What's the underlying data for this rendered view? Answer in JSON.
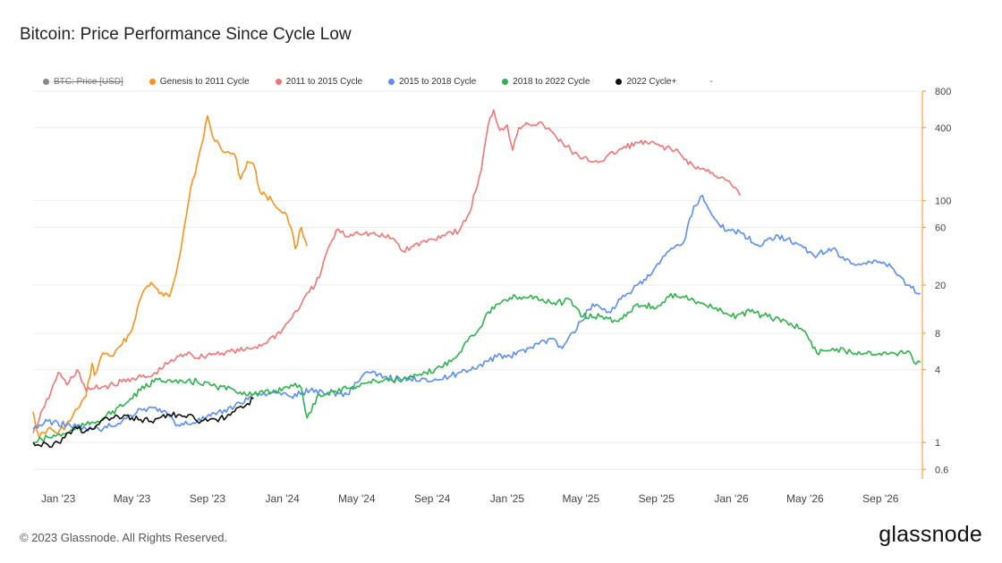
{
  "title": "Bitcoin: Price Performance Since Cycle Low",
  "footer": "© 2023 Glassnode. All Rights Reserved.",
  "brand": "glassnode",
  "legend": [
    {
      "label": "BTC: Price [USD]",
      "color": "#888888",
      "hidden": true
    },
    {
      "label": "Genesis to 2011 Cycle",
      "color": "#f7931a",
      "hidden": false
    },
    {
      "label": "2011 to 2015 Cycle",
      "color": "#f07575",
      "hidden": false
    },
    {
      "label": "2015 to 2018 Cycle",
      "color": "#5a8ef0",
      "hidden": false
    },
    {
      "label": "2018 to 2022 Cycle",
      "color": "#2eb24a",
      "hidden": false
    },
    {
      "label": "2022 Cycle+",
      "color": "#111111",
      "hidden": false
    }
  ],
  "legend_extra": "-",
  "chart_data": {
    "type": "line",
    "title": "Bitcoin: Price Performance Since Cycle Low",
    "x_ticks": [
      "Jan '23",
      "May '23",
      "Sep '23",
      "Jan '24",
      "May '24",
      "Sep '24",
      "Jan '25",
      "May '25",
      "Sep '25",
      "Jan '26",
      "May '26",
      "Sep '26"
    ],
    "y_ticks": [
      "800",
      "400",
      "100",
      "60",
      "20",
      "8",
      "4",
      "1",
      "0.6"
    ],
    "y_scale": "log",
    "y_axis_side": "right",
    "x_range": [
      "2022-11-21",
      "2026-11-08"
    ],
    "ylim": [
      0.5,
      800
    ],
    "grid": true,
    "legend_position": "top",
    "series": [
      {
        "name": "Genesis to 2011 Cycle",
        "color": "#f7931a",
        "points": [
          [
            "2022-11-21",
            1.8
          ],
          [
            "2022-12-01",
            1.1
          ],
          [
            "2022-12-15",
            1.3
          ],
          [
            "2023-01-01",
            1.2
          ],
          [
            "2023-01-20",
            1.5
          ],
          [
            "2023-02-01",
            1.9
          ],
          [
            "2023-02-15",
            2.4
          ],
          [
            "2023-02-25",
            4.5
          ],
          [
            "2023-03-01",
            3.6
          ],
          [
            "2023-03-15",
            5.5
          ],
          [
            "2023-04-01",
            5.2
          ],
          [
            "2023-04-15",
            6.5
          ],
          [
            "2023-05-01",
            8.5
          ],
          [
            "2023-05-10",
            13
          ],
          [
            "2023-05-20",
            18
          ],
          [
            "2023-06-01",
            21
          ],
          [
            "2023-06-15",
            17
          ],
          [
            "2023-07-01",
            16
          ],
          [
            "2023-07-15",
            30
          ],
          [
            "2023-07-25",
            60
          ],
          [
            "2023-08-05",
            130
          ],
          [
            "2023-08-15",
            200
          ],
          [
            "2023-08-25",
            320
          ],
          [
            "2023-09-01",
            500
          ],
          [
            "2023-09-10",
            330
          ],
          [
            "2023-09-20",
            290
          ],
          [
            "2023-10-01",
            250
          ],
          [
            "2023-10-15",
            240
          ],
          [
            "2023-10-25",
            150
          ],
          [
            "2023-11-05",
            210
          ],
          [
            "2023-11-15",
            200
          ],
          [
            "2023-11-25",
            120
          ],
          [
            "2023-12-05",
            110
          ],
          [
            "2023-12-15",
            100
          ],
          [
            "2023-12-25",
            85
          ],
          [
            "2024-01-05",
            80
          ],
          [
            "2024-01-15",
            60
          ],
          [
            "2024-01-22",
            40
          ],
          [
            "2024-02-01",
            60
          ],
          [
            "2024-02-10",
            42
          ]
        ]
      },
      {
        "name": "2011 to 2015 Cycle",
        "color": "#f07575",
        "points": [
          [
            "2022-11-21",
            1.2
          ],
          [
            "2022-12-10",
            2.0
          ],
          [
            "2022-12-20",
            2.6
          ],
          [
            "2023-01-01",
            3.8
          ],
          [
            "2023-01-15",
            3.0
          ],
          [
            "2023-02-01",
            4.0
          ],
          [
            "2023-02-15",
            2.7
          ],
          [
            "2023-03-01",
            2.8
          ],
          [
            "2023-04-01",
            3.0
          ],
          [
            "2023-05-01",
            3.4
          ],
          [
            "2023-06-01",
            3.5
          ],
          [
            "2023-07-01",
            4.6
          ],
          [
            "2023-08-01",
            5.6
          ],
          [
            "2023-08-15",
            5.0
          ],
          [
            "2023-09-01",
            5.3
          ],
          [
            "2023-10-01",
            5.6
          ],
          [
            "2023-11-01",
            5.8
          ],
          [
            "2023-12-01",
            6.5
          ],
          [
            "2024-01-01",
            8.5
          ],
          [
            "2024-02-01",
            14
          ],
          [
            "2024-03-01",
            23
          ],
          [
            "2024-03-15",
            40
          ],
          [
            "2024-04-01",
            58
          ],
          [
            "2024-04-15",
            50
          ],
          [
            "2024-05-01",
            55
          ],
          [
            "2024-06-01",
            52
          ],
          [
            "2024-07-01",
            48
          ],
          [
            "2024-07-15",
            38
          ],
          [
            "2024-08-01",
            42
          ],
          [
            "2024-09-01",
            48
          ],
          [
            "2024-10-01",
            55
          ],
          [
            "2024-10-15",
            56
          ],
          [
            "2024-11-01",
            80
          ],
          [
            "2024-11-20",
            180
          ],
          [
            "2024-12-01",
            420
          ],
          [
            "2024-12-10",
            560
          ],
          [
            "2024-12-20",
            380
          ],
          [
            "2025-01-01",
            420
          ],
          [
            "2025-01-10",
            260
          ],
          [
            "2025-01-20",
            400
          ],
          [
            "2025-02-01",
            440
          ],
          [
            "2025-03-01",
            420
          ],
          [
            "2025-04-01",
            300
          ],
          [
            "2025-05-01",
            220
          ],
          [
            "2025-06-01",
            210
          ],
          [
            "2025-07-01",
            260
          ],
          [
            "2025-08-01",
            300
          ],
          [
            "2025-09-01",
            290
          ],
          [
            "2025-10-01",
            260
          ],
          [
            "2025-11-01",
            190
          ],
          [
            "2025-12-01",
            170
          ],
          [
            "2026-01-01",
            135
          ],
          [
            "2026-01-15",
            110
          ]
        ]
      },
      {
        "name": "2015 to 2018 Cycle",
        "color": "#5a8ef0",
        "points": [
          [
            "2022-11-21",
            1.3
          ],
          [
            "2022-12-15",
            1.5
          ],
          [
            "2023-01-15",
            1.4
          ],
          [
            "2023-02-15",
            1.3
          ],
          [
            "2023-03-15",
            1.3
          ],
          [
            "2023-04-15",
            1.5
          ],
          [
            "2023-05-15",
            1.9
          ],
          [
            "2023-06-15",
            1.9
          ],
          [
            "2023-07-15",
            1.4
          ],
          [
            "2023-08-15",
            1.5
          ],
          [
            "2023-09-15",
            1.7
          ],
          [
            "2023-10-15",
            2.0
          ],
          [
            "2023-11-15",
            2.5
          ],
          [
            "2023-12-15",
            2.6
          ],
          [
            "2024-01-15",
            2.4
          ],
          [
            "2024-02-15",
            2.7
          ],
          [
            "2024-03-15",
            2.6
          ],
          [
            "2024-04-15",
            2.5
          ],
          [
            "2024-05-15",
            3.8
          ],
          [
            "2024-06-15",
            3.5
          ],
          [
            "2024-07-15",
            3.3
          ],
          [
            "2024-08-15",
            3.4
          ],
          [
            "2024-09-15",
            3.3
          ],
          [
            "2024-10-15",
            3.8
          ],
          [
            "2024-11-15",
            4.3
          ],
          [
            "2024-12-15",
            5.1
          ],
          [
            "2025-01-15",
            5.3
          ],
          [
            "2025-02-15",
            6.5
          ],
          [
            "2025-03-15",
            7.2
          ],
          [
            "2025-04-01",
            6.0
          ],
          [
            "2025-05-01",
            10
          ],
          [
            "2025-05-20",
            14
          ],
          [
            "2025-06-15",
            12
          ],
          [
            "2025-07-15",
            17
          ],
          [
            "2025-08-15",
            22
          ],
          [
            "2025-09-15",
            35
          ],
          [
            "2025-10-15",
            45
          ],
          [
            "2025-11-01",
            90
          ],
          [
            "2025-11-15",
            110
          ],
          [
            "2025-12-01",
            75
          ],
          [
            "2025-12-15",
            60
          ],
          [
            "2026-01-15",
            55
          ],
          [
            "2026-02-15",
            42
          ],
          [
            "2026-03-15",
            52
          ],
          [
            "2026-04-15",
            45
          ],
          [
            "2026-05-15",
            35
          ],
          [
            "2026-06-15",
            40
          ],
          [
            "2026-07-15",
            30
          ],
          [
            "2026-08-15",
            31
          ],
          [
            "2026-09-15",
            30
          ],
          [
            "2026-10-15",
            20
          ],
          [
            "2026-11-05",
            17
          ]
        ]
      },
      {
        "name": "2018 to 2022 Cycle",
        "color": "#2eb24a",
        "points": [
          [
            "2022-11-21",
            1.0
          ],
          [
            "2022-12-15",
            1.1
          ],
          [
            "2023-01-15",
            1.2
          ],
          [
            "2023-02-15",
            1.4
          ],
          [
            "2023-03-15",
            1.6
          ],
          [
            "2023-04-15",
            2.0
          ],
          [
            "2023-05-15",
            2.7
          ],
          [
            "2023-06-15",
            3.4
          ],
          [
            "2023-07-15",
            3.1
          ],
          [
            "2023-08-15",
            3.2
          ],
          [
            "2023-09-15",
            2.9
          ],
          [
            "2023-10-15",
            2.7
          ],
          [
            "2023-11-15",
            2.5
          ],
          [
            "2023-12-15",
            2.6
          ],
          [
            "2024-01-15",
            3.0
          ],
          [
            "2024-02-01",
            2.8
          ],
          [
            "2024-02-10",
            1.6
          ],
          [
            "2024-03-01",
            2.5
          ],
          [
            "2024-04-15",
            2.8
          ],
          [
            "2024-05-15",
            3.1
          ],
          [
            "2024-06-15",
            3.3
          ],
          [
            "2024-07-15",
            3.3
          ],
          [
            "2024-08-15",
            3.6
          ],
          [
            "2024-09-15",
            4.2
          ],
          [
            "2024-10-15",
            5.5
          ],
          [
            "2024-11-01",
            7.5
          ],
          [
            "2024-11-15",
            8.5
          ],
          [
            "2024-12-01",
            12
          ],
          [
            "2024-12-20",
            14
          ],
          [
            "2025-01-15",
            16
          ],
          [
            "2025-02-15",
            16
          ],
          [
            "2025-03-15",
            14
          ],
          [
            "2025-04-15",
            15
          ],
          [
            "2025-05-01",
            11
          ],
          [
            "2025-06-01",
            11
          ],
          [
            "2025-07-01",
            10
          ],
          [
            "2025-08-01",
            14
          ],
          [
            "2025-09-01",
            13
          ],
          [
            "2025-10-01",
            17
          ],
          [
            "2025-11-01",
            15
          ],
          [
            "2025-12-01",
            13
          ],
          [
            "2026-01-01",
            11
          ],
          [
            "2026-02-01",
            12
          ],
          [
            "2026-03-01",
            11
          ],
          [
            "2026-04-01",
            10
          ],
          [
            "2026-05-01",
            8.3
          ],
          [
            "2026-05-20",
            5.5
          ],
          [
            "2026-06-15",
            6.0
          ],
          [
            "2026-07-15",
            5.6
          ],
          [
            "2026-08-15",
            5.6
          ],
          [
            "2026-09-15",
            5.4
          ],
          [
            "2026-10-15",
            5.7
          ],
          [
            "2026-10-25",
            4.6
          ],
          [
            "2026-11-05",
            4.6
          ]
        ]
      },
      {
        "name": "2022 Cycle+",
        "color": "#111111",
        "points": [
          [
            "2022-11-21",
            1.0
          ],
          [
            "2022-12-01",
            0.95
          ],
          [
            "2022-12-15",
            0.96
          ],
          [
            "2023-01-01",
            1.0
          ],
          [
            "2023-01-15",
            1.2
          ],
          [
            "2023-02-01",
            1.3
          ],
          [
            "2023-02-15",
            1.25
          ],
          [
            "2023-03-01",
            1.3
          ],
          [
            "2023-03-15",
            1.55
          ],
          [
            "2023-04-01",
            1.6
          ],
          [
            "2023-04-15",
            1.6
          ],
          [
            "2023-05-01",
            1.6
          ],
          [
            "2023-05-15",
            1.55
          ],
          [
            "2023-06-01",
            1.5
          ],
          [
            "2023-06-15",
            1.6
          ],
          [
            "2023-07-01",
            1.7
          ],
          [
            "2023-07-15",
            1.7
          ],
          [
            "2023-08-01",
            1.7
          ],
          [
            "2023-08-15",
            1.5
          ],
          [
            "2023-09-01",
            1.5
          ],
          [
            "2023-09-15",
            1.55
          ],
          [
            "2023-10-01",
            1.6
          ],
          [
            "2023-10-15",
            1.8
          ],
          [
            "2023-10-25",
            2.0
          ],
          [
            "2023-11-05",
            2.1
          ],
          [
            "2023-11-15",
            2.3
          ]
        ]
      }
    ]
  }
}
